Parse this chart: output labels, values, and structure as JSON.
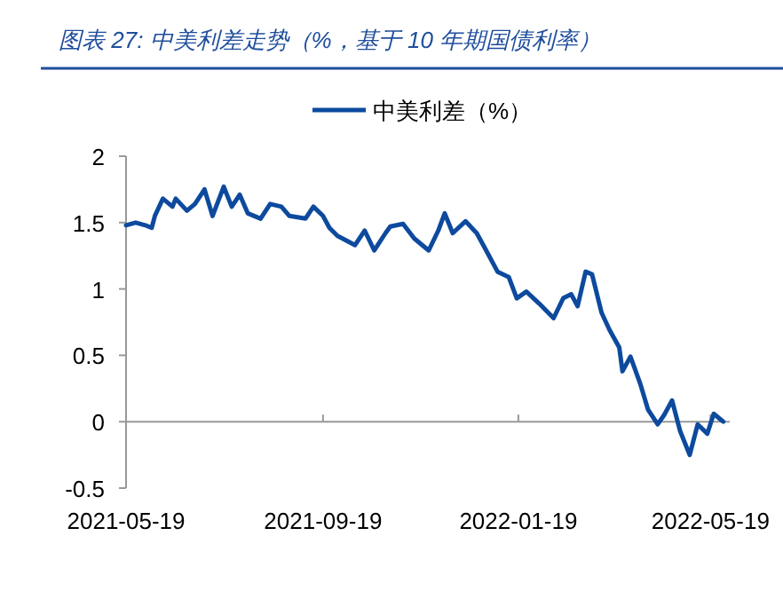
{
  "chart_data": {
    "type": "line",
    "title": "图表 27:  中美利差走势（%，基于 10 年期国债利率）",
    "x": [
      "2021-05-19",
      "2021-05-25",
      "2021-05-31",
      "2021-06-04",
      "2021-06-06",
      "2021-06-11",
      "2021-06-17",
      "2021-06-19",
      "2021-06-26",
      "2021-07-01",
      "2021-07-07",
      "2021-07-12",
      "2021-07-19",
      "2021-07-24",
      "2021-07-29",
      "2021-08-03",
      "2021-08-11",
      "2021-08-17",
      "2021-08-24",
      "2021-08-29",
      "2021-09-08",
      "2021-09-13",
      "2021-09-19",
      "2021-09-23",
      "2021-09-28",
      "2021-10-09",
      "2021-10-15",
      "2021-10-21",
      "2021-10-28",
      "2021-10-31",
      "2021-11-08",
      "2021-11-15",
      "2021-11-24",
      "2021-11-30",
      "2021-12-04",
      "2021-12-09",
      "2021-12-17",
      "2021-12-24",
      "2021-12-29",
      "2022-01-06",
      "2022-01-13",
      "2022-01-18",
      "2022-01-24",
      "2022-02-01",
      "2022-02-10",
      "2022-02-16",
      "2022-02-21",
      "2022-02-25",
      "2022-03-02",
      "2022-03-06",
      "2022-03-12",
      "2022-03-17",
      "2022-03-23",
      "2022-03-25",
      "2022-03-30",
      "2022-04-05",
      "2022-04-10",
      "2022-04-16",
      "2022-04-20",
      "2022-04-25",
      "2022-04-30",
      "2022-05-06",
      "2022-05-11",
      "2022-05-17",
      "2022-05-21",
      "2022-05-25",
      "2022-05-27"
    ],
    "series": [
      {
        "name": "中美利差（%）",
        "color": "#0d4a9e",
        "values": [
          1.48,
          1.5,
          1.48,
          1.46,
          1.55,
          1.68,
          1.62,
          1.68,
          1.59,
          1.64,
          1.75,
          1.55,
          1.77,
          1.62,
          1.71,
          1.57,
          1.53,
          1.64,
          1.62,
          1.55,
          1.53,
          1.62,
          1.55,
          1.46,
          1.4,
          1.33,
          1.44,
          1.29,
          1.42,
          1.47,
          1.49,
          1.38,
          1.29,
          1.44,
          1.57,
          1.42,
          1.51,
          1.42,
          1.31,
          1.13,
          1.09,
          0.93,
          0.98,
          0.89,
          0.78,
          0.93,
          0.96,
          0.87,
          1.13,
          1.11,
          0.82,
          0.69,
          0.56,
          0.38,
          0.49,
          0.29,
          0.09,
          -0.02,
          0.05,
          0.16,
          -0.07,
          -0.25,
          -0.02,
          -0.09,
          0.06,
          0.02,
          0.0
        ]
      }
    ],
    "xlim": [
      "2021-05-19",
      "2022-05-31"
    ],
    "xticks": [
      "2021-05-19",
      "2021-09-19",
      "2022-01-19",
      "2022-05-19"
    ],
    "ylim": [
      -0.5,
      2
    ],
    "yticks": [
      {
        "value": -0.5,
        "label": "-0.5"
      },
      0,
      0.5,
      1,
      1.5,
      2
    ],
    "legend": "top",
    "marker": "none",
    "line_style": "solid"
  }
}
